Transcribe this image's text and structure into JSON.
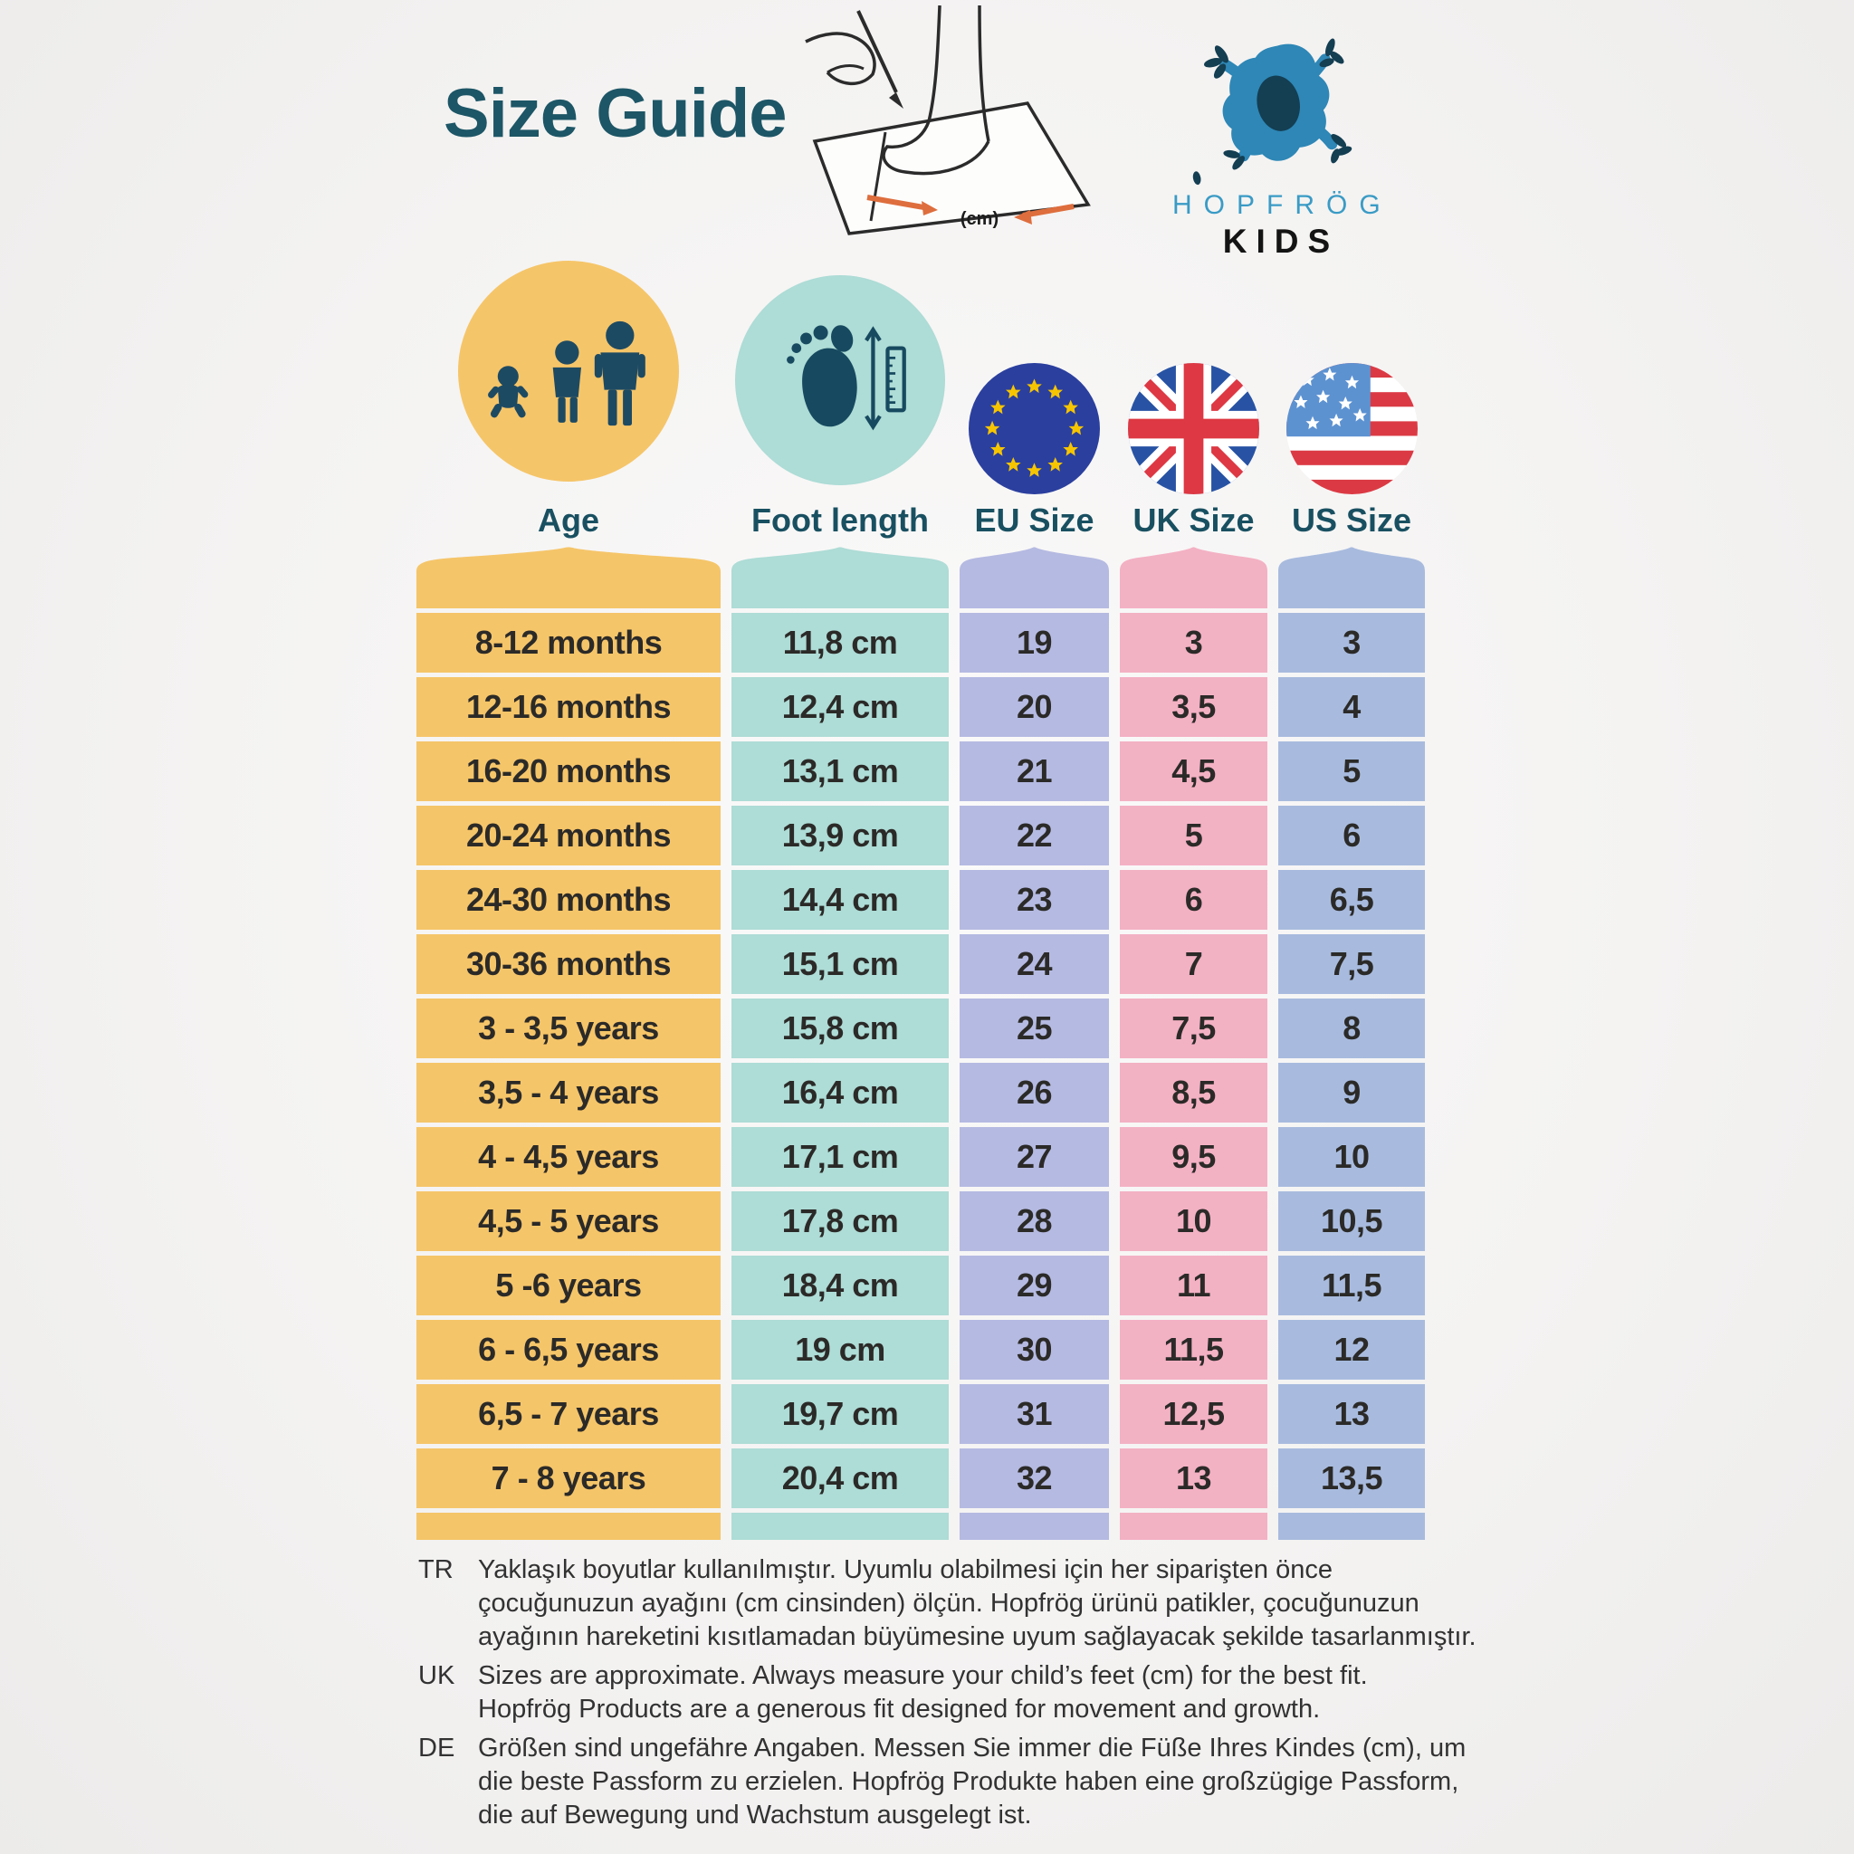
{
  "page": {
    "title": "Size Guide"
  },
  "logo": {
    "brand": "HOPFRÖG",
    "sub": "KIDS",
    "frog_color": "#2E87B6",
    "frog_dark": "#143E52",
    "brand_color": "#3A9BC5"
  },
  "illustration": {
    "cm_label": "(cm)",
    "arrow_color": "#DE6E3D"
  },
  "columns": [
    {
      "key": "age",
      "label": "Age",
      "color": "#F5C569",
      "icon": "age-people-icon",
      "icon_bg": "#F5C569"
    },
    {
      "key": "foot",
      "label": "Foot length",
      "color": "#AEDCD6",
      "icon": "foot-ruler-icon",
      "icon_bg": "#AEDCD6"
    },
    {
      "key": "eu",
      "label": "EU Size",
      "color": "#B5BAE2",
      "icon": "eu-flag-icon"
    },
    {
      "key": "uk",
      "label": "UK Size",
      "color": "#F3B1C4",
      "icon": "uk-flag-icon"
    },
    {
      "key": "us",
      "label": "US Size",
      "color": "#A8BBDE",
      "icon": "us-flag-icon"
    }
  ],
  "chart_data": {
    "type": "table",
    "title": "Size Guide",
    "columns": [
      "Age",
      "Foot length",
      "EU Size",
      "UK Size",
      "US Size"
    ],
    "rows": [
      {
        "age": "8-12 months",
        "foot": "11,8 cm",
        "eu": "19",
        "uk": "3",
        "us": "3"
      },
      {
        "age": "12-16 months",
        "foot": "12,4 cm",
        "eu": "20",
        "uk": "3,5",
        "us": "4"
      },
      {
        "age": "16-20 months",
        "foot": "13,1 cm",
        "eu": "21",
        "uk": "4,5",
        "us": "5"
      },
      {
        "age": "20-24 months",
        "foot": "13,9 cm",
        "eu": "22",
        "uk": "5",
        "us": "6"
      },
      {
        "age": "24-30 months",
        "foot": "14,4 cm",
        "eu": "23",
        "uk": "6",
        "us": "6,5"
      },
      {
        "age": "30-36 months",
        "foot": "15,1 cm",
        "eu": "24",
        "uk": "7",
        "us": "7,5"
      },
      {
        "age": "3 - 3,5 years",
        "foot": "15,8 cm",
        "eu": "25",
        "uk": "7,5",
        "us": "8"
      },
      {
        "age": "3,5 - 4 years",
        "foot": "16,4 cm",
        "eu": "26",
        "uk": "8,5",
        "us": "9"
      },
      {
        "age": "4 - 4,5 years",
        "foot": "17,1 cm",
        "eu": "27",
        "uk": "9,5",
        "us": "10"
      },
      {
        "age": "4,5 - 5 years",
        "foot": "17,8 cm",
        "eu": "28",
        "uk": "10",
        "us": "10,5"
      },
      {
        "age": "5 -6 years",
        "foot": "18,4 cm",
        "eu": "29",
        "uk": "11",
        "us": "11,5"
      },
      {
        "age": "6 - 6,5 years",
        "foot": "19 cm",
        "eu": "30",
        "uk": "11,5",
        "us": "12"
      },
      {
        "age": "6,5 - 7 years",
        "foot": "19,7 cm",
        "eu": "31",
        "uk": "12,5",
        "us": "13"
      },
      {
        "age": "7 - 8 years",
        "foot": "20,4 cm",
        "eu": "32",
        "uk": "13",
        "us": "13,5"
      }
    ]
  },
  "footer": [
    {
      "lang": "TR",
      "lines": [
        "Yaklaşık boyutlar kullanılmıştır. Uyumlu olabilmesi için her siparişten önce",
        "çocuğunuzun ayağını (cm cinsinden) ölçün. Hopfrög ürünü patikler, çocuğunuzun",
        "ayağının hareketini kısıtlamadan büyümesine uyum sağlayacak şekilde tasarlanmıştır."
      ]
    },
    {
      "lang": "UK",
      "lines": [
        "Sizes are approximate. Always measure your child’s feet (cm) for the best fit.",
        "Hopfrög Products are a generous fit designed for movement and growth."
      ]
    },
    {
      "lang": "DE",
      "lines": [
        "Größen sind ungefähre Angaben. Messen Sie immer die Füße Ihres Kindes (cm), um",
        "die beste Passform zu erzielen. Hopfrög Produkte haben eine großzügige Passform,",
        "die auf Bewegung und Wachstum ausgelegt ist."
      ]
    }
  ]
}
